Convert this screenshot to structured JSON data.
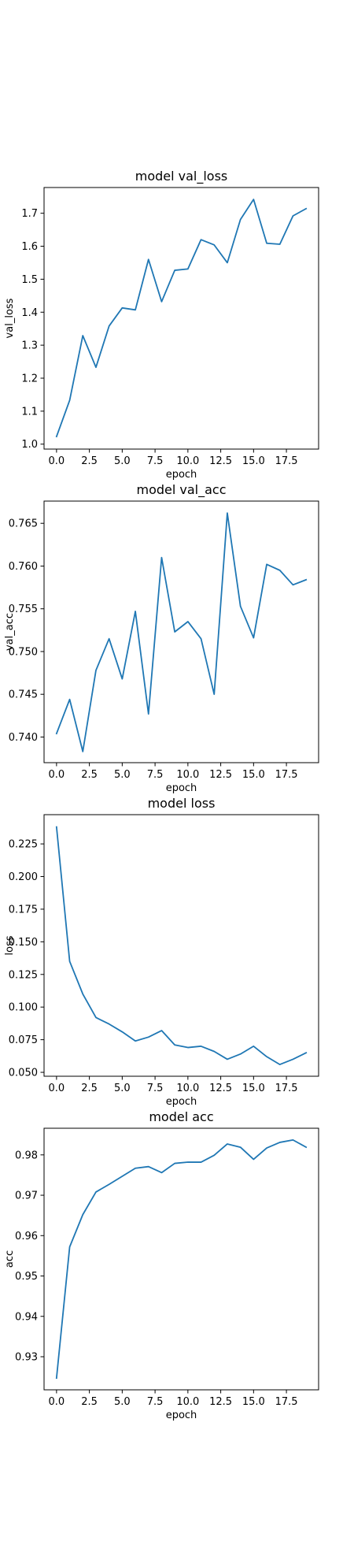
{
  "colors": {
    "line": "#1f77b4",
    "axes": "#000000",
    "background": "#ffffff"
  },
  "chart_data": [
    {
      "type": "line",
      "title": "model val_loss",
      "xlabel": "epoch",
      "ylabel": "val_loss",
      "grid": false,
      "x": [
        0,
        1,
        2,
        3,
        4,
        5,
        6,
        7,
        8,
        9,
        10,
        11,
        12,
        13,
        14,
        15,
        16,
        17,
        18,
        19
      ],
      "y": [
        1.023,
        1.133,
        1.329,
        1.233,
        1.358,
        1.413,
        1.407,
        1.56,
        1.432,
        1.527,
        1.531,
        1.62,
        1.604,
        1.55,
        1.681,
        1.742,
        1.609,
        1.606,
        1.692,
        1.714
      ],
      "xlim": [
        -0.95,
        19.95
      ],
      "ylim": [
        0.985,
        1.778
      ],
      "xticks": [
        0,
        2.5,
        5,
        7.5,
        10,
        12.5,
        15,
        17.5
      ],
      "xtick_labels": [
        "0.0",
        "2.5",
        "5.0",
        "7.5",
        "10.0",
        "12.5",
        "15.0",
        "17.5"
      ],
      "yticks": [
        1.0,
        1.1,
        1.2,
        1.3,
        1.4,
        1.5,
        1.6,
        1.7
      ],
      "ytick_labels": [
        "1.0",
        "1.1",
        "1.2",
        "1.3",
        "1.4",
        "1.5",
        "1.6",
        "1.7"
      ]
    },
    {
      "type": "line",
      "title": "model val_acc",
      "xlabel": "epoch",
      "ylabel": "val_acc",
      "grid": false,
      "x": [
        0,
        1,
        2,
        3,
        4,
        5,
        6,
        7,
        8,
        9,
        10,
        11,
        12,
        13,
        14,
        15,
        16,
        17,
        18,
        19
      ],
      "y": [
        0.7404,
        0.7444,
        0.7383,
        0.7478,
        0.7515,
        0.7468,
        0.7547,
        0.7427,
        0.761,
        0.7523,
        0.7535,
        0.7515,
        0.745,
        0.7662,
        0.7553,
        0.7516,
        0.7602,
        0.7595,
        0.7578,
        0.7584
      ],
      "xlim": [
        -0.95,
        19.95
      ],
      "ylim": [
        0.737,
        0.7676
      ],
      "xticks": [
        0,
        2.5,
        5,
        7.5,
        10,
        12.5,
        15,
        17.5
      ],
      "xtick_labels": [
        "0.0",
        "2.5",
        "5.0",
        "7.5",
        "10.0",
        "12.5",
        "15.0",
        "17.5"
      ],
      "yticks": [
        0.74,
        0.745,
        0.75,
        0.755,
        0.76,
        0.765
      ],
      "ytick_labels": [
        "0.740",
        "0.745",
        "0.750",
        "0.755",
        "0.760",
        "0.765"
      ]
    },
    {
      "type": "line",
      "title": "model loss",
      "xlabel": "epoch",
      "ylabel": "loss",
      "grid": false,
      "x": [
        0,
        1,
        2,
        3,
        4,
        5,
        6,
        7,
        8,
        9,
        10,
        11,
        12,
        13,
        14,
        15,
        16,
        17,
        18,
        19
      ],
      "y": [
        0.238,
        0.135,
        0.11,
        0.092,
        0.087,
        0.081,
        0.074,
        0.077,
        0.082,
        0.071,
        0.069,
        0.07,
        0.066,
        0.06,
        0.064,
        0.07,
        0.062,
        0.056,
        0.06,
        0.065
      ],
      "xlim": [
        -0.95,
        19.95
      ],
      "ylim": [
        0.047,
        0.2474
      ],
      "xticks": [
        0,
        2.5,
        5,
        7.5,
        10,
        12.5,
        15,
        17.5
      ],
      "xtick_labels": [
        "0.0",
        "2.5",
        "5.0",
        "7.5",
        "10.0",
        "12.5",
        "15.0",
        "17.5"
      ],
      "yticks": [
        0.05,
        0.075,
        0.1,
        0.125,
        0.15,
        0.175,
        0.2,
        0.225
      ],
      "ytick_labels": [
        "0.050",
        "0.075",
        "0.100",
        "0.125",
        "0.150",
        "0.175",
        "0.200",
        "0.225"
      ]
    },
    {
      "type": "line",
      "title": "model acc",
      "xlabel": "epoch",
      "ylabel": "acc",
      "grid": false,
      "x": [
        0,
        1,
        2,
        3,
        4,
        5,
        6,
        7,
        8,
        9,
        10,
        11,
        12,
        13,
        14,
        15,
        16,
        17,
        18,
        19
      ],
      "y": [
        0.9247,
        0.9572,
        0.9652,
        0.9708,
        0.9727,
        0.9747,
        0.9767,
        0.9771,
        0.9756,
        0.9779,
        0.9782,
        0.9782,
        0.9799,
        0.9827,
        0.9819,
        0.9789,
        0.9817,
        0.9831,
        0.9837,
        0.9819
      ],
      "xlim": [
        -0.95,
        19.95
      ],
      "ylim": [
        0.9218,
        0.9866
      ],
      "xticks": [
        0,
        2.5,
        5,
        7.5,
        10,
        12.5,
        15,
        17.5
      ],
      "xtick_labels": [
        "0.0",
        "2.5",
        "5.0",
        "7.5",
        "10.0",
        "12.5",
        "15.0",
        "17.5"
      ],
      "yticks": [
        0.93,
        0.94,
        0.95,
        0.96,
        0.97,
        0.98
      ],
      "ytick_labels": [
        "0.93",
        "0.94",
        "0.95",
        "0.96",
        "0.97",
        "0.98"
      ]
    }
  ]
}
